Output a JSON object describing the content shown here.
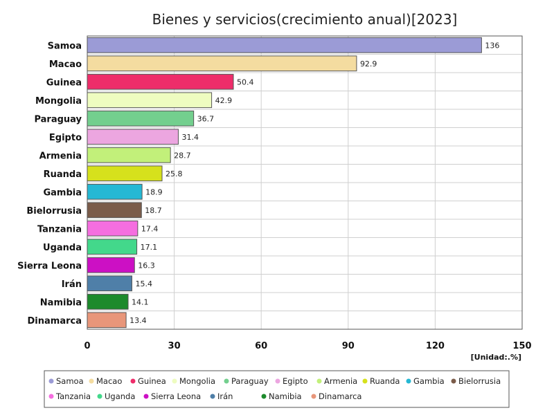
{
  "chart_data": {
    "type": "bar",
    "orientation": "horizontal",
    "title": "Bienes y servicios(crecimiento anual)[2023]",
    "unit_label": "[Unidad:.%]",
    "xlim": [
      0,
      150
    ],
    "xticks": [
      0,
      30,
      60,
      90,
      120,
      150
    ],
    "grid": true,
    "legend_position": "bottom",
    "categories": [
      "Samoa",
      "Macao",
      "Guinea",
      "Mongolia",
      "Paraguay",
      "Egipto",
      "Armenia",
      "Ruanda",
      "Gambia",
      "Bielorrusia",
      "Tanzania",
      "Uganda",
      "Sierra Leona",
      "Irán",
      "Namibia",
      "Dinamarca"
    ],
    "values": [
      136,
      92.9,
      50.4,
      42.9,
      36.7,
      31.4,
      28.7,
      25.8,
      18.9,
      18.7,
      17.4,
      17.1,
      16.3,
      15.4,
      14.1,
      13.4
    ],
    "value_labels": [
      "136",
      "92.9",
      "50.4",
      "42.9",
      "36.7",
      "31.4",
      "28.7",
      "25.8",
      "18.9",
      "18.7",
      "17.4",
      "17.1",
      "16.3",
      "15.4",
      "14.1",
      "13.4"
    ],
    "colors": [
      "#9b9bd6",
      "#f4dca0",
      "#ee2d6a",
      "#eefcc0",
      "#73cf8e",
      "#eca6e0",
      "#c2f07a",
      "#d6e11c",
      "#25b8d4",
      "#7b5c4a",
      "#f56ee0",
      "#43d88b",
      "#cc10c4",
      "#4f7fa8",
      "#1d8a2c",
      "#e8967a"
    ]
  }
}
